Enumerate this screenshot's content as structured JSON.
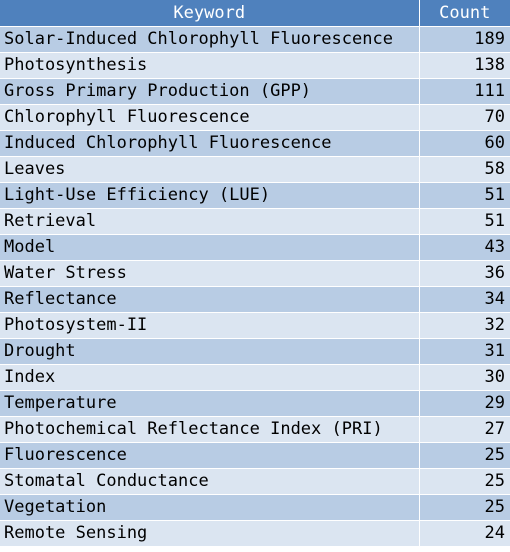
{
  "table": {
    "headers": {
      "keyword": "Keyword",
      "count": "Count"
    },
    "rows": [
      {
        "keyword": "Solar-Induced Chlorophyll Fluorescence",
        "count": "189"
      },
      {
        "keyword": "Photosynthesis",
        "count": "138"
      },
      {
        "keyword": "Gross Primary Production (GPP)",
        "count": "111"
      },
      {
        "keyword": "Chlorophyll Fluorescence",
        "count": "70"
      },
      {
        "keyword": "Induced Chlorophyll Fluorescence",
        "count": "60"
      },
      {
        "keyword": "Leaves",
        "count": "58"
      },
      {
        "keyword": "Light-Use Efficiency (LUE)",
        "count": "51"
      },
      {
        "keyword": "Retrieval",
        "count": "51"
      },
      {
        "keyword": "Model",
        "count": "43"
      },
      {
        "keyword": "Water Stress",
        "count": "36"
      },
      {
        "keyword": "Reflectance",
        "count": "34"
      },
      {
        "keyword": "Photosystem-II",
        "count": "32"
      },
      {
        "keyword": "Drought",
        "count": "31"
      },
      {
        "keyword": "Index",
        "count": "30"
      },
      {
        "keyword": "Temperature",
        "count": "29"
      },
      {
        "keyword": "Photochemical Reflectance Index (PRI)",
        "count": "27"
      },
      {
        "keyword": "Fluorescence",
        "count": "25"
      },
      {
        "keyword": "Stomatal Conductance",
        "count": "25"
      },
      {
        "keyword": "Vegetation",
        "count": "25"
      },
      {
        "keyword": "Remote Sensing",
        "count": "24"
      }
    ]
  },
  "colors": {
    "header_bg": "#4f81bd",
    "row_odd_bg": "#b8cce4",
    "row_even_bg": "#dbe5f1"
  }
}
